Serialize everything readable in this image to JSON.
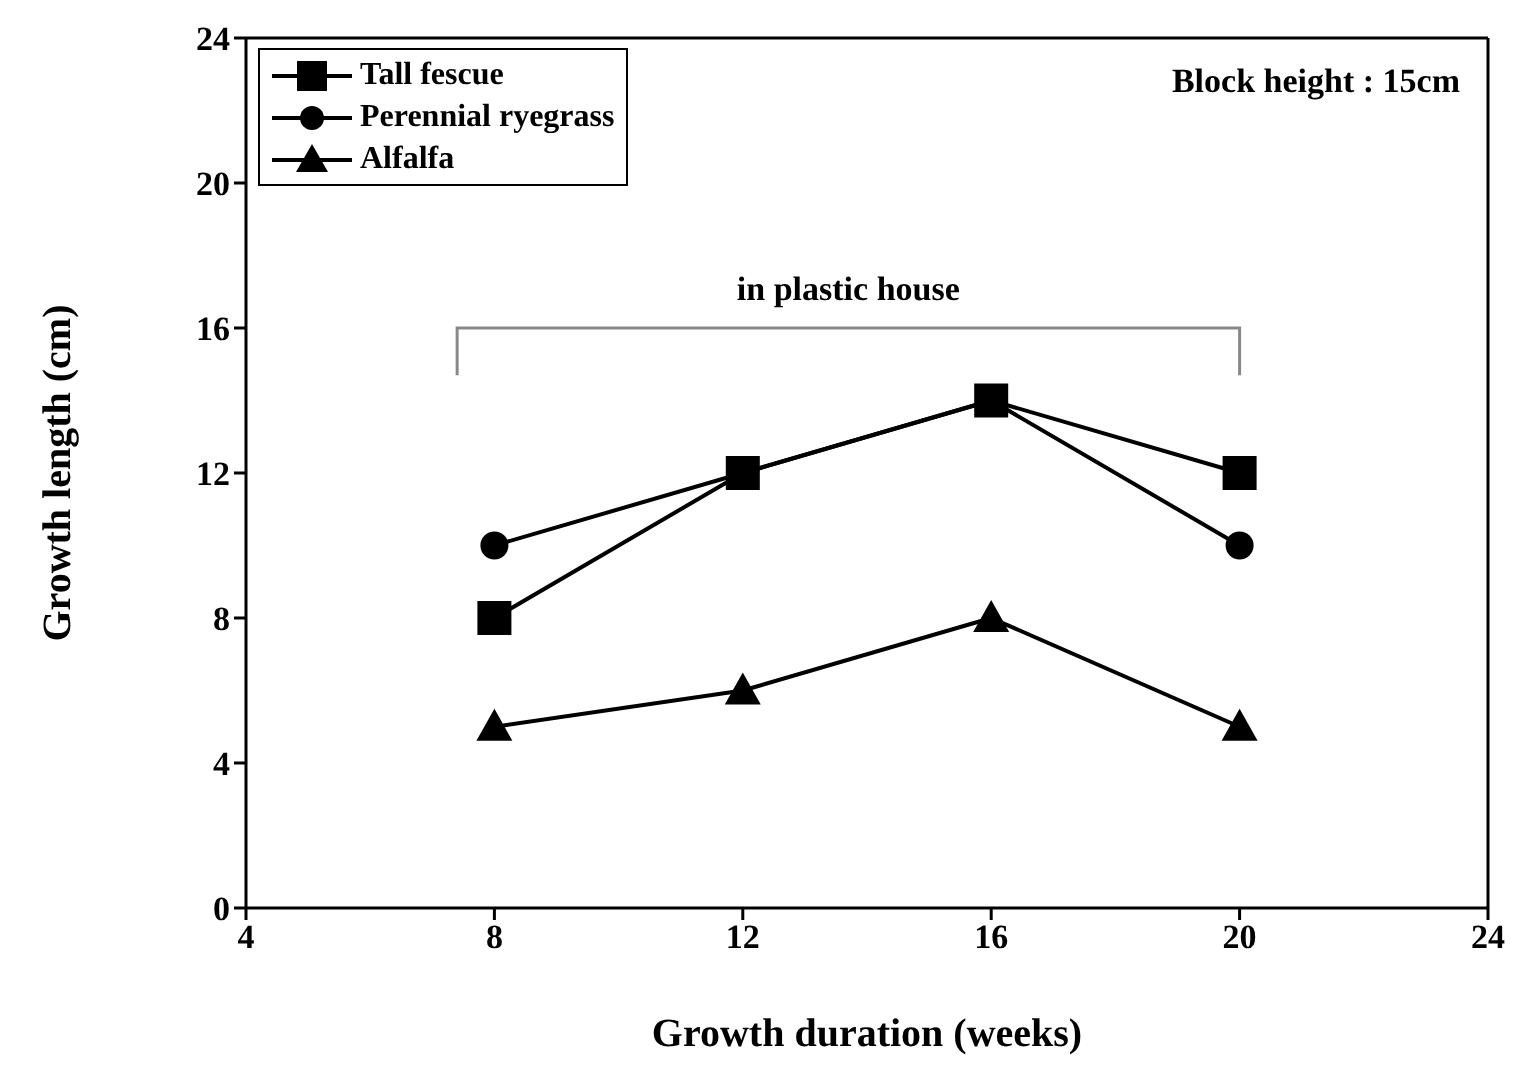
{
  "chart_data": {
    "type": "line",
    "xlabel": "Growth duration (weeks)",
    "ylabel": "Growth length (cm)",
    "x": [
      8,
      12,
      16,
      20
    ],
    "series": [
      {
        "name": "Tall fescue",
        "color": "#000000",
        "marker": "square",
        "values": [
          8,
          12,
          14,
          12
        ]
      },
      {
        "name": "Perennial ryegrass",
        "color": "#000000",
        "marker": "circle",
        "values": [
          10,
          12,
          14,
          10
        ]
      },
      {
        "name": "Alfalfa",
        "color": "#000000",
        "marker": "triangle",
        "values": [
          5,
          6,
          8,
          5
        ]
      }
    ],
    "xlim": [
      4,
      24
    ],
    "xticks": [
      4,
      8,
      12,
      16,
      20,
      24
    ],
    "ylim": [
      0,
      24
    ],
    "yticks": [
      0,
      4,
      8,
      12,
      16,
      20,
      24
    ],
    "grid": false,
    "legend": "top left",
    "line_style": "solid",
    "annotations": [
      "Block height : 15cm",
      "in plastic house"
    ]
  }
}
